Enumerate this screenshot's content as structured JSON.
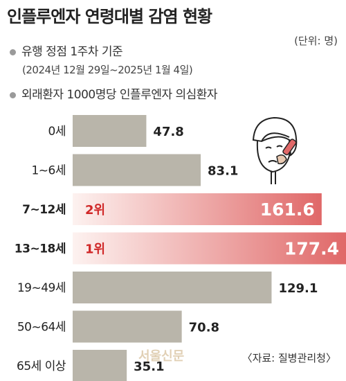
{
  "title": "인플루엔자 연령대별 감염 현황",
  "unit": "(단위: 명)",
  "subtitle1": "유행 정점 1주차 기준",
  "period": "(2024년 12월 29일~2025년 1월 4일)",
  "subtitle2": "외래환자 1000명당 인플루엔자 의심환자",
  "source": "〈자료: 질병관리청〉",
  "watermark": "서울신문",
  "colors": {
    "bar": "#b9b5aa",
    "highlight": "#e06868",
    "highlight_text": "#d02828"
  },
  "chart_data": {
    "type": "bar",
    "orientation": "horizontal",
    "categories": [
      "0세",
      "1~6세",
      "7~12세",
      "13~18세",
      "19~49세",
      "50~64세",
      "65세 이상"
    ],
    "values": [
      47.8,
      83.1,
      161.6,
      177.4,
      129.1,
      70.8,
      35.1
    ],
    "value_labels": [
      "47.8",
      "83.1",
      "161.6",
      "177.4",
      "129.1",
      "70.8",
      "35.1"
    ],
    "rank_labels": [
      "",
      "",
      "2위",
      "1위",
      "",
      "",
      ""
    ],
    "highlighted": [
      false,
      false,
      true,
      true,
      false,
      false,
      false
    ],
    "xlim": [
      0,
      177.4
    ],
    "grid": false
  }
}
